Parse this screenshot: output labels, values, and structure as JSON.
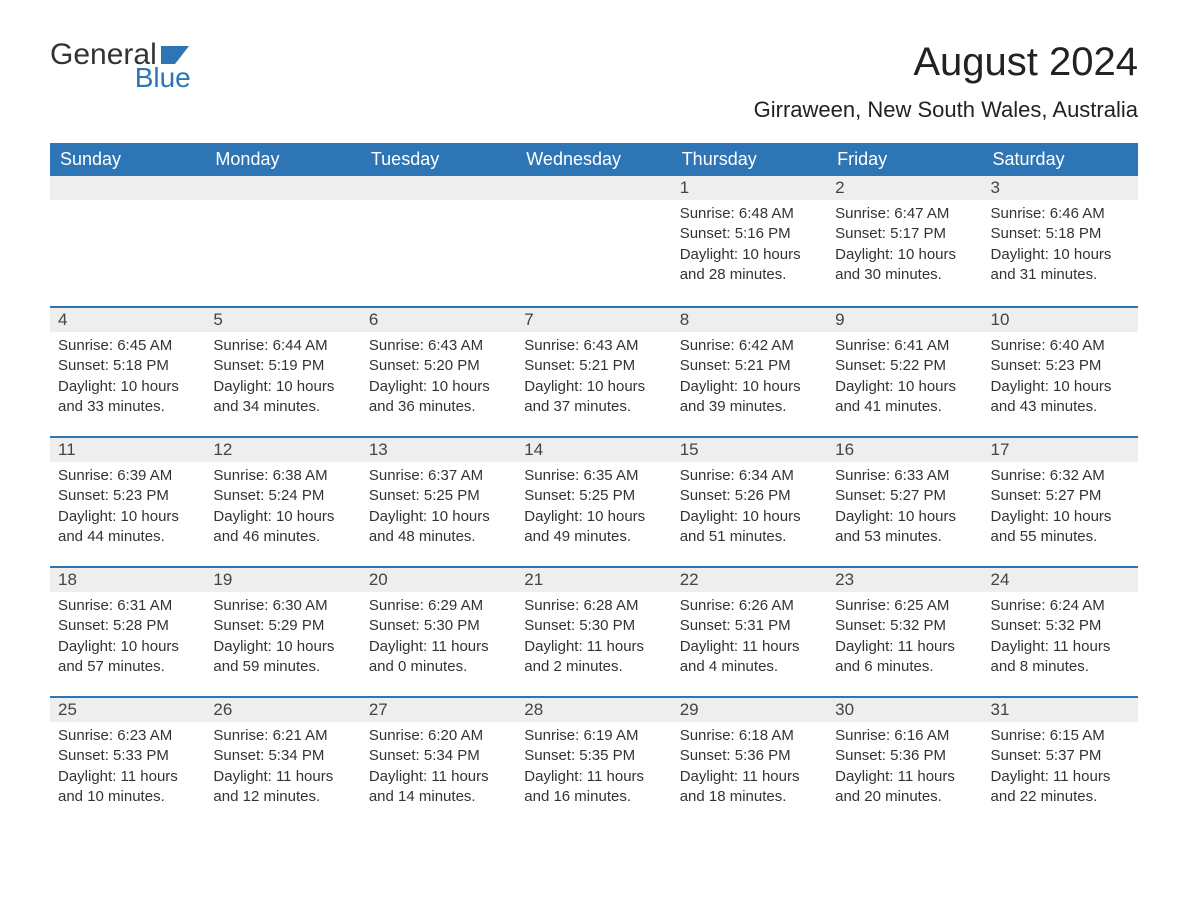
{
  "logo": {
    "text1": "General",
    "text2": "Blue",
    "accent_color": "#2e75b6"
  },
  "title": "August 2024",
  "location": "Girraween, New South Wales, Australia",
  "colors": {
    "header_bg": "#2e75b6",
    "header_text": "#ffffff",
    "daybar_bg": "#eeeeee",
    "daybar_border": "#2e75b6",
    "body_text": "#333333",
    "background": "#ffffff"
  },
  "typography": {
    "title_fontsize": 40,
    "location_fontsize": 22,
    "header_fontsize": 18,
    "daynum_fontsize": 17,
    "body_fontsize": 15
  },
  "calendar": {
    "type": "table",
    "columns": [
      "Sunday",
      "Monday",
      "Tuesday",
      "Wednesday",
      "Thursday",
      "Friday",
      "Saturday"
    ],
    "weeks": [
      [
        null,
        null,
        null,
        null,
        {
          "day": "1",
          "sunrise": "Sunrise: 6:48 AM",
          "sunset": "Sunset: 5:16 PM",
          "daylight": "Daylight: 10 hours and 28 minutes."
        },
        {
          "day": "2",
          "sunrise": "Sunrise: 6:47 AM",
          "sunset": "Sunset: 5:17 PM",
          "daylight": "Daylight: 10 hours and 30 minutes."
        },
        {
          "day": "3",
          "sunrise": "Sunrise: 6:46 AM",
          "sunset": "Sunset: 5:18 PM",
          "daylight": "Daylight: 10 hours and 31 minutes."
        }
      ],
      [
        {
          "day": "4",
          "sunrise": "Sunrise: 6:45 AM",
          "sunset": "Sunset: 5:18 PM",
          "daylight": "Daylight: 10 hours and 33 minutes."
        },
        {
          "day": "5",
          "sunrise": "Sunrise: 6:44 AM",
          "sunset": "Sunset: 5:19 PM",
          "daylight": "Daylight: 10 hours and 34 minutes."
        },
        {
          "day": "6",
          "sunrise": "Sunrise: 6:43 AM",
          "sunset": "Sunset: 5:20 PM",
          "daylight": "Daylight: 10 hours and 36 minutes."
        },
        {
          "day": "7",
          "sunrise": "Sunrise: 6:43 AM",
          "sunset": "Sunset: 5:21 PM",
          "daylight": "Daylight: 10 hours and 37 minutes."
        },
        {
          "day": "8",
          "sunrise": "Sunrise: 6:42 AM",
          "sunset": "Sunset: 5:21 PM",
          "daylight": "Daylight: 10 hours and 39 minutes."
        },
        {
          "day": "9",
          "sunrise": "Sunrise: 6:41 AM",
          "sunset": "Sunset: 5:22 PM",
          "daylight": "Daylight: 10 hours and 41 minutes."
        },
        {
          "day": "10",
          "sunrise": "Sunrise: 6:40 AM",
          "sunset": "Sunset: 5:23 PM",
          "daylight": "Daylight: 10 hours and 43 minutes."
        }
      ],
      [
        {
          "day": "11",
          "sunrise": "Sunrise: 6:39 AM",
          "sunset": "Sunset: 5:23 PM",
          "daylight": "Daylight: 10 hours and 44 minutes."
        },
        {
          "day": "12",
          "sunrise": "Sunrise: 6:38 AM",
          "sunset": "Sunset: 5:24 PM",
          "daylight": "Daylight: 10 hours and 46 minutes."
        },
        {
          "day": "13",
          "sunrise": "Sunrise: 6:37 AM",
          "sunset": "Sunset: 5:25 PM",
          "daylight": "Daylight: 10 hours and 48 minutes."
        },
        {
          "day": "14",
          "sunrise": "Sunrise: 6:35 AM",
          "sunset": "Sunset: 5:25 PM",
          "daylight": "Daylight: 10 hours and 49 minutes."
        },
        {
          "day": "15",
          "sunrise": "Sunrise: 6:34 AM",
          "sunset": "Sunset: 5:26 PM",
          "daylight": "Daylight: 10 hours and 51 minutes."
        },
        {
          "day": "16",
          "sunrise": "Sunrise: 6:33 AM",
          "sunset": "Sunset: 5:27 PM",
          "daylight": "Daylight: 10 hours and 53 minutes."
        },
        {
          "day": "17",
          "sunrise": "Sunrise: 6:32 AM",
          "sunset": "Sunset: 5:27 PM",
          "daylight": "Daylight: 10 hours and 55 minutes."
        }
      ],
      [
        {
          "day": "18",
          "sunrise": "Sunrise: 6:31 AM",
          "sunset": "Sunset: 5:28 PM",
          "daylight": "Daylight: 10 hours and 57 minutes."
        },
        {
          "day": "19",
          "sunrise": "Sunrise: 6:30 AM",
          "sunset": "Sunset: 5:29 PM",
          "daylight": "Daylight: 10 hours and 59 minutes."
        },
        {
          "day": "20",
          "sunrise": "Sunrise: 6:29 AM",
          "sunset": "Sunset: 5:30 PM",
          "daylight": "Daylight: 11 hours and 0 minutes."
        },
        {
          "day": "21",
          "sunrise": "Sunrise: 6:28 AM",
          "sunset": "Sunset: 5:30 PM",
          "daylight": "Daylight: 11 hours and 2 minutes."
        },
        {
          "day": "22",
          "sunrise": "Sunrise: 6:26 AM",
          "sunset": "Sunset: 5:31 PM",
          "daylight": "Daylight: 11 hours and 4 minutes."
        },
        {
          "day": "23",
          "sunrise": "Sunrise: 6:25 AM",
          "sunset": "Sunset: 5:32 PM",
          "daylight": "Daylight: 11 hours and 6 minutes."
        },
        {
          "day": "24",
          "sunrise": "Sunrise: 6:24 AM",
          "sunset": "Sunset: 5:32 PM",
          "daylight": "Daylight: 11 hours and 8 minutes."
        }
      ],
      [
        {
          "day": "25",
          "sunrise": "Sunrise: 6:23 AM",
          "sunset": "Sunset: 5:33 PM",
          "daylight": "Daylight: 11 hours and 10 minutes."
        },
        {
          "day": "26",
          "sunrise": "Sunrise: 6:21 AM",
          "sunset": "Sunset: 5:34 PM",
          "daylight": "Daylight: 11 hours and 12 minutes."
        },
        {
          "day": "27",
          "sunrise": "Sunrise: 6:20 AM",
          "sunset": "Sunset: 5:34 PM",
          "daylight": "Daylight: 11 hours and 14 minutes."
        },
        {
          "day": "28",
          "sunrise": "Sunrise: 6:19 AM",
          "sunset": "Sunset: 5:35 PM",
          "daylight": "Daylight: 11 hours and 16 minutes."
        },
        {
          "day": "29",
          "sunrise": "Sunrise: 6:18 AM",
          "sunset": "Sunset: 5:36 PM",
          "daylight": "Daylight: 11 hours and 18 minutes."
        },
        {
          "day": "30",
          "sunrise": "Sunrise: 6:16 AM",
          "sunset": "Sunset: 5:36 PM",
          "daylight": "Daylight: 11 hours and 20 minutes."
        },
        {
          "day": "31",
          "sunrise": "Sunrise: 6:15 AM",
          "sunset": "Sunset: 5:37 PM",
          "daylight": "Daylight: 11 hours and 22 minutes."
        }
      ]
    ]
  }
}
